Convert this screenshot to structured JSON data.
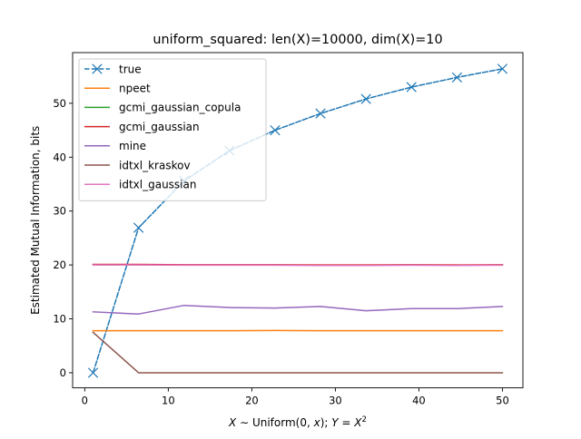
{
  "chart_data": {
    "type": "line",
    "title": "uniform_squared: len(X)=10000, dim(X)=10",
    "xlabel_parts": {
      "lhs": "X",
      "tilde": " ∼ Uniform(0, ",
      "x": "x",
      "mid": "); ",
      "y": "Y",
      "eq": " = ",
      "base": "X",
      "exp": "2"
    },
    "ylabel": "Estimated Mutual Information, bits",
    "xlim": [
      -1.45,
      52.45
    ],
    "ylim": [
      -2.8,
      59.4
    ],
    "xticks": [
      0,
      10,
      20,
      30,
      40,
      50
    ],
    "yticks": [
      0,
      10,
      20,
      30,
      40,
      50
    ],
    "grid": false,
    "legend_position": "top-left",
    "x": [
      1,
      6.44,
      11.89,
      17.33,
      22.78,
      28.22,
      33.67,
      39.11,
      44.56,
      50
    ],
    "series": [
      {
        "name": "true",
        "color": "#1f77b4",
        "dashed": true,
        "marker": "x",
        "values": [
          0,
          26.9,
          35.6,
          41.2,
          45.0,
          48.1,
          50.8,
          53.0,
          54.8,
          56.4
        ]
      },
      {
        "name": "npeet",
        "color": "#ff7f0e",
        "dashed": false,
        "marker": "",
        "values": [
          7.8,
          7.8,
          7.8,
          7.8,
          7.85,
          7.8,
          7.8,
          7.8,
          7.8,
          7.8
        ]
      },
      {
        "name": "gcmi_gaussian_copula",
        "color": "#2ca02c",
        "dashed": false,
        "marker": "",
        "values": [
          20.05,
          20.05,
          20.0,
          20.0,
          20.0,
          19.95,
          19.95,
          20.0,
          19.95,
          20.0
        ]
      },
      {
        "name": "gcmi_gaussian",
        "color": "#d62728",
        "dashed": false,
        "marker": "",
        "values": [
          20.1,
          20.1,
          20.05,
          20.05,
          20.05,
          20.0,
          20.0,
          20.05,
          20.0,
          20.05
        ]
      },
      {
        "name": "mine",
        "color": "#9467bd",
        "dashed": false,
        "marker": "",
        "values": [
          11.3,
          10.9,
          12.5,
          12.1,
          12.0,
          12.3,
          11.5,
          11.9,
          11.9,
          12.3
        ]
      },
      {
        "name": "idtxl_kraskov",
        "color": "#8c564b",
        "dashed": false,
        "marker": "",
        "values": [
          7.5,
          0,
          0,
          0,
          0,
          0,
          0,
          0,
          0,
          0
        ]
      },
      {
        "name": "idtxl_gaussian",
        "color": "#e377c2",
        "dashed": false,
        "marker": "",
        "values": [
          20.0,
          20.0,
          19.95,
          19.95,
          19.95,
          19.9,
          19.9,
          19.95,
          19.9,
          19.95
        ]
      }
    ]
  }
}
